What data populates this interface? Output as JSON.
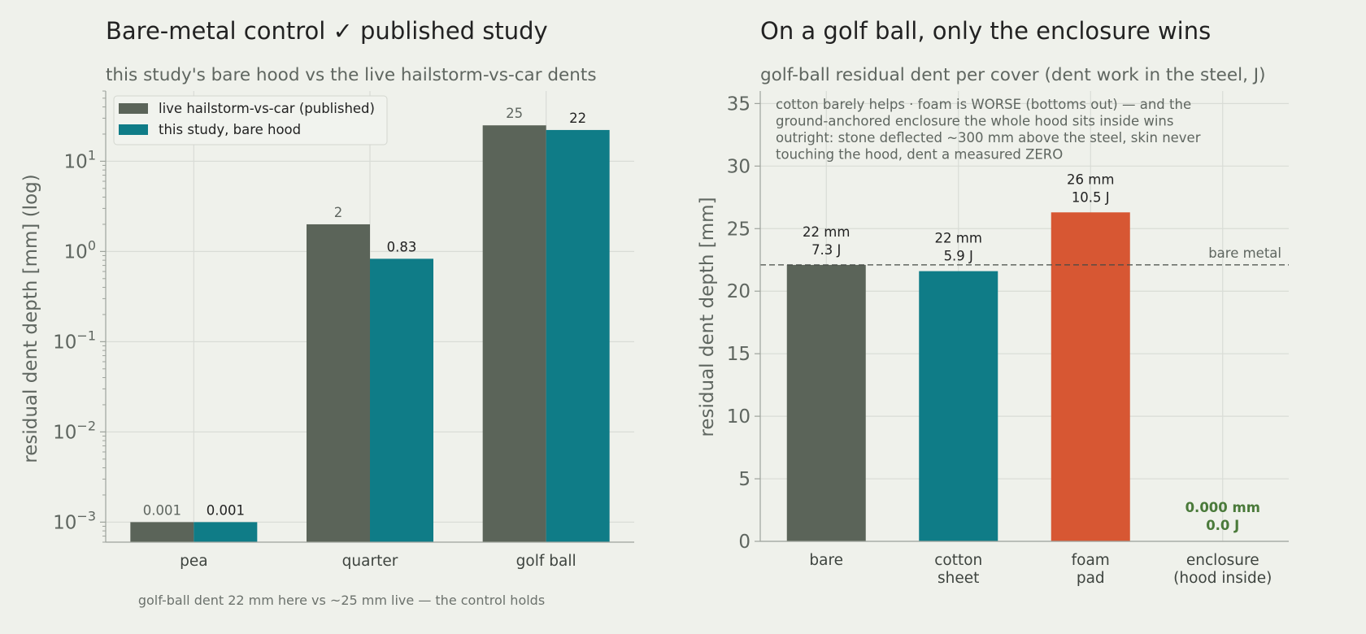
{
  "colors": {
    "background": "#eff1eb",
    "published": "#5b6459",
    "study": "#0f7c87",
    "foam": "#d75733",
    "enclosure_label": "#4a7a3a",
    "grid": "#d9dcd6",
    "axis": "#9ea39c"
  },
  "chart_data": [
    {
      "type": "bar",
      "title": "Bare-metal control ✓ published study",
      "subtitle": "this study's bare hood vs the live hailstorm-vs-car dents",
      "xlabel": "",
      "ylabel": "residual dent depth  [mm]  (log)",
      "yscale": "log",
      "ylim": [
        0.0006,
        60
      ],
      "yticks": [
        {
          "value": 0.001,
          "base": "10",
          "exp": "−3"
        },
        {
          "value": 0.01,
          "base": "10",
          "exp": "−2"
        },
        {
          "value": 0.1,
          "base": "10",
          "exp": "−1"
        },
        {
          "value": 1,
          "base": "10",
          "exp": "0"
        },
        {
          "value": 10,
          "base": "10",
          "exp": "1"
        }
      ],
      "categories": [
        "pea",
        "quarter",
        "golf ball"
      ],
      "series": [
        {
          "name": "live hailstorm-vs-car (published)",
          "values": [
            0.001,
            2,
            25
          ],
          "labels": [
            "0.001",
            "2",
            "25"
          ],
          "color": "#5b6459"
        },
        {
          "name": "this study, bare hood",
          "values": [
            0.001,
            0.83,
            22.2
          ],
          "labels": [
            "0.001",
            "0.83",
            "22"
          ],
          "color": "#0f7c87"
        }
      ],
      "legend": "top-left",
      "grid": true,
      "footnote": "golf-ball dent 22 mm here vs ~25 mm live — the control holds"
    },
    {
      "type": "bar",
      "title": "On a golf ball, only the enclosure wins",
      "subtitle": "golf-ball residual dent per cover (dent work in the steel, J)",
      "xlabel": "",
      "ylabel": "residual dent depth  [mm]",
      "ylim": [
        0,
        36
      ],
      "yticks": [
        0,
        5,
        10,
        15,
        20,
        25,
        30,
        35
      ],
      "categories": [
        [
          "bare"
        ],
        [
          "cotton",
          "sheet"
        ],
        [
          "foam",
          "pad"
        ],
        [
          "enclosure",
          "(hood inside)"
        ]
      ],
      "values": [
        22.1,
        21.6,
        26.3,
        0
      ],
      "colors": [
        "#5b6459",
        "#0f7c87",
        "#d75733",
        "#4a7a3a"
      ],
      "bar_labels": [
        [
          "22 mm",
          "7.3 J"
        ],
        [
          "22 mm",
          "5.9 J"
        ],
        [
          "26 mm",
          "10.5 J"
        ],
        [
          "0.000 mm",
          "0.0 J"
        ]
      ],
      "reference_line": {
        "value": 22.1,
        "label": "bare metal"
      },
      "annotation": [
        "cotton barely helps · foam is WORSE (bottoms out) — and the",
        "ground-anchored enclosure the whole hood sits inside wins",
        "outright: stone deflected ~300 mm above the steel, skin never",
        "touching the hood, dent a measured ZERO"
      ],
      "grid": true
    }
  ]
}
